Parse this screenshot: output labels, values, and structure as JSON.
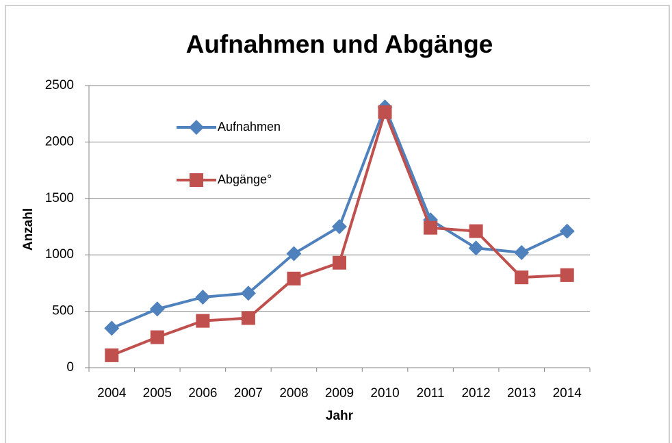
{
  "chart_data": {
    "type": "line",
    "title": "Aufnahmen und Abgänge",
    "x_label": "Jahr",
    "y_label": "Anzahl",
    "categories": [
      "2004",
      "2005",
      "2006",
      "2007",
      "2008",
      "2009",
      "2010",
      "2011",
      "2012",
      "2013",
      "2014"
    ],
    "series": [
      {
        "name": "Aufnahmen",
        "color": "#4f81bd",
        "marker": "diamond",
        "values": [
          350,
          520,
          625,
          660,
          1010,
          1250,
          2310,
          1310,
          1060,
          1020,
          1210
        ]
      },
      {
        "name": "Abgänge°",
        "color": "#c0504d",
        "marker": "square",
        "values": [
          110,
          270,
          415,
          440,
          790,
          930,
          2265,
          1240,
          1210,
          800,
          820
        ]
      }
    ],
    "ylim": [
      0,
      2500
    ],
    "yticks": [
      0,
      500,
      1000,
      1500,
      2000,
      2500
    ],
    "grid": true
  }
}
